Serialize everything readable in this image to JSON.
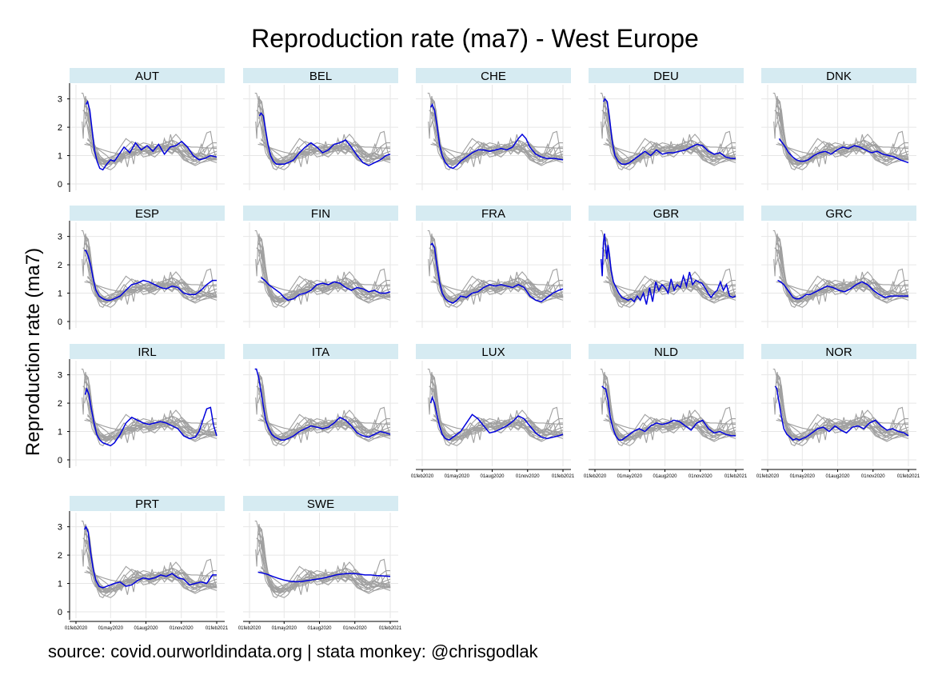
{
  "chart_data": {
    "type": "line",
    "title": "Reproduction rate (ma7) - West Europe",
    "ylabel": "Reproduction rate (ma7)",
    "xlabel": "",
    "ylim": [
      0,
      3.3
    ],
    "yticks": [
      0,
      1,
      2,
      3
    ],
    "xticks": [
      "01feb2020",
      "01may2020",
      "01aug2020",
      "01nov2020",
      "01feb2021"
    ],
    "xtick_days": [
      0,
      90,
      182,
      274,
      366
    ],
    "x_range_days": [
      0,
      366
    ],
    "grid": true,
    "highlight_color": "#0000dd",
    "background_series_color": "#a0a0a0",
    "panel_header_color": "#d6ebf2",
    "source": "source: covid.ourworldindata.org | stata monkey: @chrisgodlak",
    "panels": [
      {
        "country": "AUT",
        "x": [
          26,
          30,
          36,
          42,
          48,
          55,
          62,
          70,
          80,
          90,
          100,
          110,
          125,
          140,
          155,
          170,
          185,
          200,
          215,
          230,
          245,
          260,
          275,
          290,
          305,
          320,
          335,
          350,
          366
        ],
        "y": [
          2.8,
          2.9,
          2.6,
          1.9,
          1.2,
          0.8,
          0.55,
          0.5,
          0.7,
          0.85,
          0.8,
          1.0,
          1.3,
          1.1,
          1.45,
          1.2,
          1.35,
          1.15,
          1.4,
          1.05,
          1.3,
          1.35,
          1.5,
          1.3,
          1.0,
          0.85,
          0.9,
          1.0,
          0.95
        ]
      },
      {
        "country": "BEL",
        "x": [
          26,
          30,
          36,
          42,
          48,
          55,
          62,
          70,
          80,
          90,
          100,
          115,
          130,
          145,
          160,
          175,
          190,
          205,
          220,
          235,
          250,
          265,
          280,
          295,
          310,
          325,
          340,
          355,
          366
        ],
        "y": [
          2.4,
          2.5,
          2.4,
          1.9,
          1.4,
          1.0,
          0.8,
          0.7,
          0.7,
          0.7,
          0.75,
          0.85,
          1.1,
          1.3,
          1.45,
          1.3,
          1.1,
          1.2,
          1.4,
          1.45,
          1.55,
          1.3,
          1.0,
          0.75,
          0.65,
          0.75,
          0.85,
          1.0,
          1.05
        ]
      },
      {
        "country": "CHE",
        "x": [
          22,
          26,
          32,
          38,
          45,
          52,
          60,
          70,
          80,
          90,
          100,
          115,
          130,
          145,
          160,
          175,
          190,
          205,
          220,
          235,
          250,
          260,
          270,
          280,
          295,
          310,
          325,
          345,
          366
        ],
        "y": [
          2.7,
          2.8,
          2.6,
          2.1,
          1.4,
          1.0,
          0.75,
          0.6,
          0.55,
          0.65,
          0.8,
          0.95,
          1.1,
          1.2,
          1.2,
          1.15,
          1.2,
          1.25,
          1.2,
          1.3,
          1.6,
          1.75,
          1.6,
          1.3,
          1.05,
          0.95,
          0.9,
          0.9,
          0.85
        ]
      },
      {
        "country": "DEU",
        "x": [
          22,
          26,
          32,
          38,
          45,
          52,
          60,
          70,
          80,
          90,
          100,
          115,
          130,
          145,
          160,
          175,
          190,
          205,
          220,
          235,
          250,
          265,
          280,
          295,
          310,
          325,
          340,
          355,
          366
        ],
        "y": [
          2.9,
          3.0,
          2.9,
          2.3,
          1.5,
          1.0,
          0.8,
          0.7,
          0.7,
          0.75,
          0.85,
          1.0,
          1.15,
          1.0,
          1.2,
          1.05,
          1.1,
          1.1,
          1.15,
          1.2,
          1.3,
          1.4,
          1.35,
          1.15,
          1.05,
          1.1,
          0.95,
          0.9,
          0.9
        ]
      },
      {
        "country": "DNK",
        "x": [
          30,
          38,
          46,
          55,
          65,
          75,
          85,
          95,
          105,
          120,
          135,
          150,
          165,
          180,
          195,
          210,
          225,
          240,
          255,
          270,
          285,
          300,
          315,
          330,
          345,
          355,
          366
        ],
        "y": [
          1.6,
          1.45,
          1.3,
          1.1,
          0.95,
          0.85,
          0.8,
          0.8,
          0.85,
          1.0,
          1.1,
          1.15,
          1.05,
          1.2,
          1.3,
          1.25,
          1.35,
          1.3,
          1.2,
          1.1,
          1.15,
          1.05,
          1.0,
          0.95,
          0.85,
          0.8,
          0.75
        ]
      },
      {
        "country": "ESP",
        "x": [
          22,
          26,
          32,
          38,
          45,
          52,
          60,
          70,
          80,
          90,
          100,
          115,
          130,
          145,
          160,
          175,
          190,
          205,
          220,
          235,
          250,
          265,
          280,
          295,
          310,
          325,
          340,
          355,
          366
        ],
        "y": [
          2.5,
          2.5,
          2.3,
          2.0,
          1.5,
          1.1,
          0.9,
          0.8,
          0.75,
          0.75,
          0.8,
          0.9,
          1.1,
          1.3,
          1.35,
          1.45,
          1.4,
          1.3,
          1.2,
          1.15,
          1.25,
          1.2,
          1.0,
          0.95,
          0.95,
          1.1,
          1.3,
          1.45,
          1.45
        ]
      },
      {
        "country": "FIN",
        "x": [
          30,
          40,
          50,
          60,
          70,
          80,
          90,
          100,
          115,
          130,
          145,
          160,
          175,
          190,
          205,
          220,
          235,
          250,
          265,
          280,
          295,
          310,
          325,
          340,
          355,
          366
        ],
        "y": [
          1.55,
          1.45,
          1.3,
          1.2,
          1.1,
          1.0,
          0.85,
          0.75,
          0.8,
          0.95,
          1.0,
          1.1,
          1.3,
          1.35,
          1.3,
          1.4,
          1.35,
          1.2,
          1.1,
          1.2,
          1.15,
          1.05,
          1.1,
          1.0,
          1.0,
          1.05
        ]
      },
      {
        "country": "FRA",
        "x": [
          22,
          26,
          32,
          38,
          45,
          52,
          60,
          70,
          80,
          90,
          100,
          115,
          130,
          145,
          160,
          175,
          190,
          205,
          220,
          235,
          250,
          265,
          280,
          295,
          310,
          325,
          340,
          355,
          366
        ],
        "y": [
          2.7,
          2.75,
          2.6,
          2.0,
          1.4,
          1.0,
          0.8,
          0.7,
          0.65,
          0.75,
          0.9,
          0.85,
          1.0,
          1.05,
          1.2,
          1.3,
          1.25,
          1.3,
          1.25,
          1.2,
          1.3,
          1.2,
          0.9,
          0.75,
          0.7,
          0.85,
          1.0,
          1.1,
          1.15
        ]
      },
      {
        "country": "GBR",
        "x": [
          16,
          19,
          22,
          25,
          28,
          31,
          34,
          38,
          42,
          48,
          55,
          62,
          70,
          78,
          86,
          94,
          102,
          110,
          118,
          126,
          134,
          142,
          150,
          158,
          166,
          174,
          182,
          190,
          198,
          206,
          214,
          222,
          230,
          238,
          246,
          254,
          262,
          270,
          278,
          286,
          294,
          302,
          310,
          318,
          326,
          334,
          342,
          350,
          358,
          366
        ],
        "y": [
          2.2,
          1.6,
          2.8,
          3.1,
          2.6,
          2.2,
          2.7,
          2.3,
          1.8,
          1.4,
          1.2,
          1.0,
          0.85,
          0.8,
          0.75,
          0.8,
          0.7,
          0.9,
          0.75,
          1.0,
          0.6,
          1.2,
          0.7,
          1.4,
          1.1,
          1.3,
          1.2,
          1.0,
          1.5,
          1.1,
          1.3,
          1.2,
          1.6,
          1.25,
          1.75,
          1.3,
          1.45,
          1.4,
          1.35,
          1.2,
          1.0,
          0.85,
          1.0,
          1.1,
          1.4,
          1.1,
          1.3,
          0.9,
          0.85,
          0.9
        ]
      },
      {
        "country": "GRC",
        "x": [
          26,
          34,
          42,
          50,
          58,
          66,
          74,
          82,
          90,
          100,
          110,
          125,
          140,
          155,
          170,
          185,
          200,
          215,
          230,
          245,
          260,
          275,
          290,
          305,
          320,
          335,
          350,
          366
        ],
        "y": [
          1.45,
          1.4,
          1.3,
          1.15,
          1.0,
          0.85,
          0.8,
          0.8,
          0.85,
          0.95,
          0.95,
          1.05,
          1.15,
          1.25,
          1.2,
          1.1,
          1.05,
          1.15,
          1.3,
          1.4,
          1.3,
          1.1,
          0.95,
          0.85,
          0.9,
          0.9,
          0.9,
          0.9
        ]
      },
      {
        "country": "IRL",
        "x": [
          24,
          28,
          34,
          40,
          47,
          54,
          62,
          70,
          80,
          90,
          100,
          115,
          130,
          145,
          160,
          175,
          190,
          205,
          220,
          235,
          250,
          265,
          280,
          295,
          310,
          320,
          330,
          340,
          350,
          358,
          366
        ],
        "y": [
          2.3,
          2.5,
          2.3,
          1.8,
          1.3,
          0.9,
          0.7,
          0.6,
          0.55,
          0.5,
          0.6,
          0.9,
          1.3,
          1.5,
          1.4,
          1.3,
          1.25,
          1.3,
          1.35,
          1.3,
          1.2,
          1.1,
          0.85,
          0.75,
          0.8,
          1.0,
          1.4,
          1.8,
          1.85,
          1.2,
          0.85
        ]
      },
      {
        "country": "ITA",
        "x": [
          14,
          18,
          24,
          30,
          36,
          42,
          50,
          58,
          66,
          74,
          82,
          90,
          100,
          115,
          130,
          145,
          160,
          175,
          190,
          205,
          220,
          235,
          250,
          265,
          280,
          295,
          310,
          325,
          340,
          355,
          366
        ],
        "y": [
          3.2,
          3.2,
          2.9,
          2.4,
          1.9,
          1.4,
          1.1,
          0.9,
          0.8,
          0.75,
          0.7,
          0.7,
          0.75,
          0.85,
          1.0,
          1.1,
          1.2,
          1.15,
          1.1,
          1.15,
          1.3,
          1.5,
          1.4,
          1.2,
          0.95,
          0.85,
          0.8,
          0.9,
          1.0,
          0.95,
          0.9
        ]
      },
      {
        "country": "LUX",
        "x": [
          22,
          26,
          32,
          38,
          45,
          52,
          60,
          70,
          80,
          90,
          100,
          115,
          130,
          145,
          160,
          175,
          190,
          205,
          220,
          235,
          250,
          265,
          280,
          295,
          310,
          325,
          340,
          355,
          366
        ],
        "y": [
          2.0,
          2.2,
          2.0,
          1.6,
          1.2,
          0.9,
          0.75,
          0.7,
          0.8,
          0.9,
          1.0,
          1.3,
          1.6,
          1.45,
          1.2,
          0.95,
          1.0,
          1.1,
          1.2,
          1.35,
          1.55,
          1.45,
          1.2,
          0.95,
          0.8,
          0.75,
          0.8,
          0.85,
          0.9
        ]
      },
      {
        "country": "NLD",
        "x": [
          18,
          22,
          28,
          34,
          40,
          47,
          54,
          62,
          70,
          80,
          90,
          100,
          115,
          130,
          145,
          160,
          175,
          190,
          205,
          220,
          235,
          250,
          265,
          280,
          295,
          310,
          325,
          340,
          355,
          366
        ],
        "y": [
          2.6,
          2.55,
          2.5,
          2.1,
          1.5,
          1.1,
          0.85,
          0.7,
          0.7,
          0.8,
          0.9,
          1.0,
          1.1,
          1.0,
          1.2,
          1.3,
          1.25,
          1.3,
          1.4,
          1.35,
          1.2,
          1.05,
          1.3,
          1.4,
          1.1,
          0.95,
          1.0,
          0.9,
          0.85,
          0.85
        ]
      },
      {
        "country": "NOR",
        "x": [
          20,
          24,
          30,
          36,
          42,
          50,
          58,
          66,
          74,
          82,
          90,
          100,
          115,
          130,
          145,
          160,
          175,
          190,
          205,
          220,
          235,
          250,
          265,
          280,
          295,
          310,
          325,
          340,
          355,
          366
        ],
        "y": [
          2.6,
          2.5,
          2.0,
          1.5,
          1.1,
          0.9,
          0.8,
          0.7,
          0.75,
          0.7,
          0.75,
          0.8,
          0.95,
          1.1,
          1.15,
          1.0,
          1.2,
          1.05,
          0.95,
          1.15,
          1.2,
          1.1,
          1.3,
          1.4,
          1.2,
          1.05,
          1.1,
          1.0,
          0.95,
          0.85
        ]
      },
      {
        "country": "PRT",
        "x": [
          22,
          26,
          32,
          38,
          45,
          52,
          60,
          70,
          80,
          90,
          100,
          115,
          130,
          145,
          160,
          175,
          190,
          205,
          220,
          235,
          250,
          265,
          280,
          295,
          310,
          325,
          340,
          355,
          366
        ],
        "y": [
          2.9,
          3.0,
          2.8,
          2.1,
          1.5,
          1.1,
          0.9,
          0.85,
          0.9,
          0.95,
          1.0,
          1.05,
          0.9,
          0.95,
          1.1,
          1.2,
          1.15,
          1.2,
          1.3,
          1.25,
          1.35,
          1.2,
          1.15,
          0.95,
          1.0,
          1.05,
          1.0,
          1.3,
          1.3
        ]
      },
      {
        "country": "SWE",
        "x": [
          22,
          30,
          45,
          60,
          75,
          90,
          105,
          120,
          135,
          150,
          165,
          180,
          195,
          210,
          225,
          240,
          255,
          270,
          285,
          300,
          315,
          330,
          345,
          366
        ],
        "y": [
          1.4,
          1.38,
          1.33,
          1.25,
          1.18,
          1.12,
          1.08,
          1.06,
          1.07,
          1.1,
          1.13,
          1.16,
          1.2,
          1.25,
          1.3,
          1.33,
          1.35,
          1.35,
          1.33,
          1.3,
          1.3,
          1.28,
          1.27,
          1.25
        ]
      }
    ]
  }
}
